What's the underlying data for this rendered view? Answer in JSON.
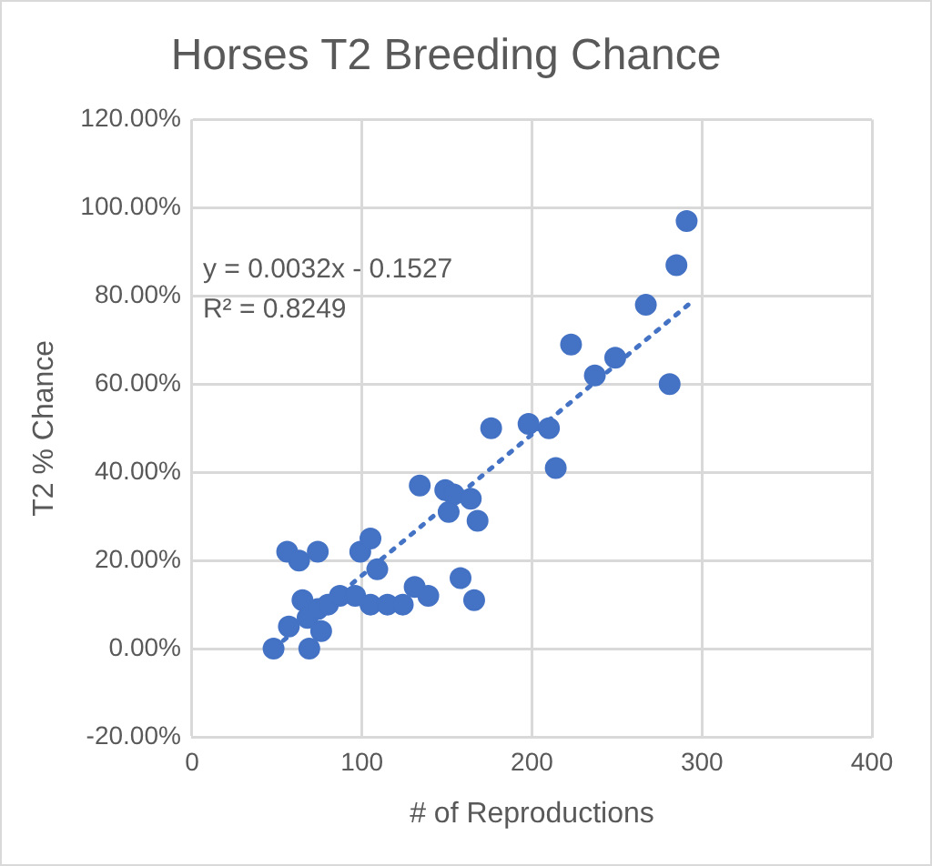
{
  "chart_data": {
    "type": "scatter",
    "title": "Horses T2 Breeding Chance",
    "xlabel": "# of Reproductions",
    "ylabel": "T2 % Chance",
    "xlim": [
      0,
      400
    ],
    "xticks": [
      0,
      100,
      200,
      300,
      400
    ],
    "ylim": [
      -20,
      120
    ],
    "yticks": [
      {
        "value": -20,
        "label": "-20.00%"
      },
      {
        "value": 0,
        "label": "0.00%"
      },
      {
        "value": 20,
        "label": "20.00%"
      },
      {
        "value": 40,
        "label": "40.00%"
      },
      {
        "value": 60,
        "label": "60.00%"
      },
      {
        "value": 80,
        "label": "80.00%"
      },
      {
        "value": 100,
        "label": "100.00%"
      },
      {
        "value": 120,
        "label": "120.00%"
      }
    ],
    "grid": true,
    "legend": false,
    "marker": "circle",
    "annotations": [
      "y = 0.0032x - 0.1527",
      "R² = 0.8249"
    ],
    "series": [
      {
        "color": "#4472c4",
        "x": [
          48,
          69,
          57,
          76,
          65,
          68,
          74,
          80,
          87,
          96,
          105,
          115,
          124,
          131,
          139,
          158,
          166,
          56,
          63,
          74,
          99,
          105,
          109,
          176,
          198,
          210,
          214,
          134,
          149,
          154,
          164,
          151,
          168,
          223,
          237,
          249,
          267,
          285,
          291,
          281
        ],
        "values": [
          0,
          0,
          5,
          4,
          11,
          7,
          9,
          10,
          12,
          12,
          10,
          10,
          10,
          14,
          12,
          16,
          11,
          22,
          20,
          22,
          22,
          25,
          18,
          50,
          51,
          50,
          41,
          37,
          36,
          35,
          34,
          31,
          29,
          69,
          62,
          66,
          78,
          87,
          97,
          60
        ]
      },
      {
        "type": "line",
        "color": "#4472c4",
        "line_style": "dotted",
        "marker": "none",
        "x": [
          48,
          295
        ],
        "values": [
          0,
          79
        ]
      }
    ]
  }
}
